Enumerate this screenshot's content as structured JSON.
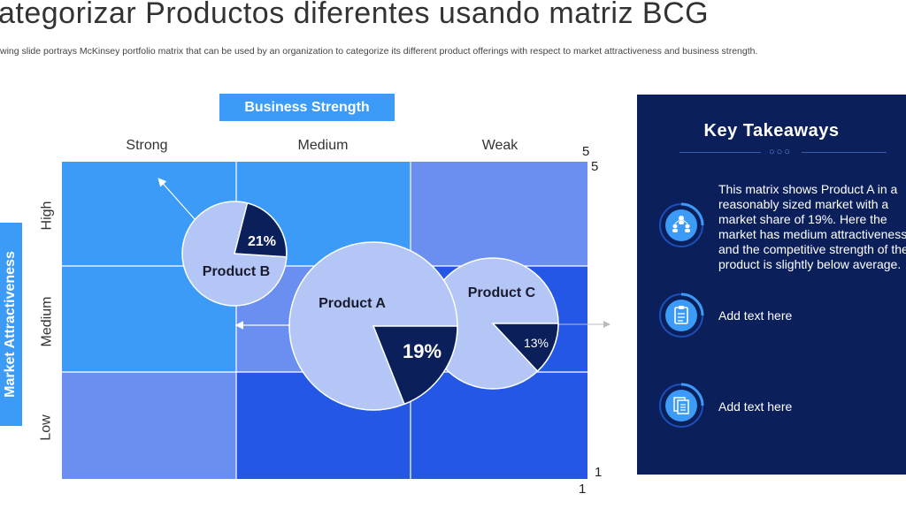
{
  "header": {
    "title": "ategorizar Productos diferentes usando matriz BCG",
    "subtitle": "wing slide portrays  McKinsey portfolio matrix that can be used by an organization to categorize its different product offerings with respect to market attractiveness and business strength."
  },
  "matrix": {
    "x_axis_title": "Business Strength",
    "y_axis_title": "Market Attractiveness",
    "columns": [
      "Strong",
      "Medium",
      "Weak"
    ],
    "rows": [
      "High",
      "Medium",
      "Low"
    ],
    "axis_numbers": {
      "top_5a": "5",
      "top_5b": "5",
      "bottom_1a": "1",
      "bottom_1b": "1"
    },
    "colors": {
      "light": "#3b9bf7",
      "medium": "#6b8ff0",
      "dark": "#2457e6",
      "pie": "#b4c6f6",
      "slice": "#0b1f5b",
      "grid_line": "#ffffff"
    },
    "products": [
      {
        "name": "Product A",
        "share_label": "19%",
        "share": 19
      },
      {
        "name": "Product B",
        "share_label": "21%",
        "share": 21
      },
      {
        "name": "Product C",
        "share_label": "13%",
        "share": 13
      }
    ]
  },
  "takeaways": {
    "title": "Key Takeaways",
    "dots": "○○○",
    "items": [
      {
        "icon": "team-icon",
        "text": "This matrix shows Product A in a reasonably sized market with a market share of 19%. Here the market has medium attractiveness and the competitive strength of the product is slightly below average."
      },
      {
        "icon": "clipboard-icon",
        "text": "Add text here"
      },
      {
        "icon": "documents-icon",
        "text": "Add text here"
      }
    ]
  }
}
